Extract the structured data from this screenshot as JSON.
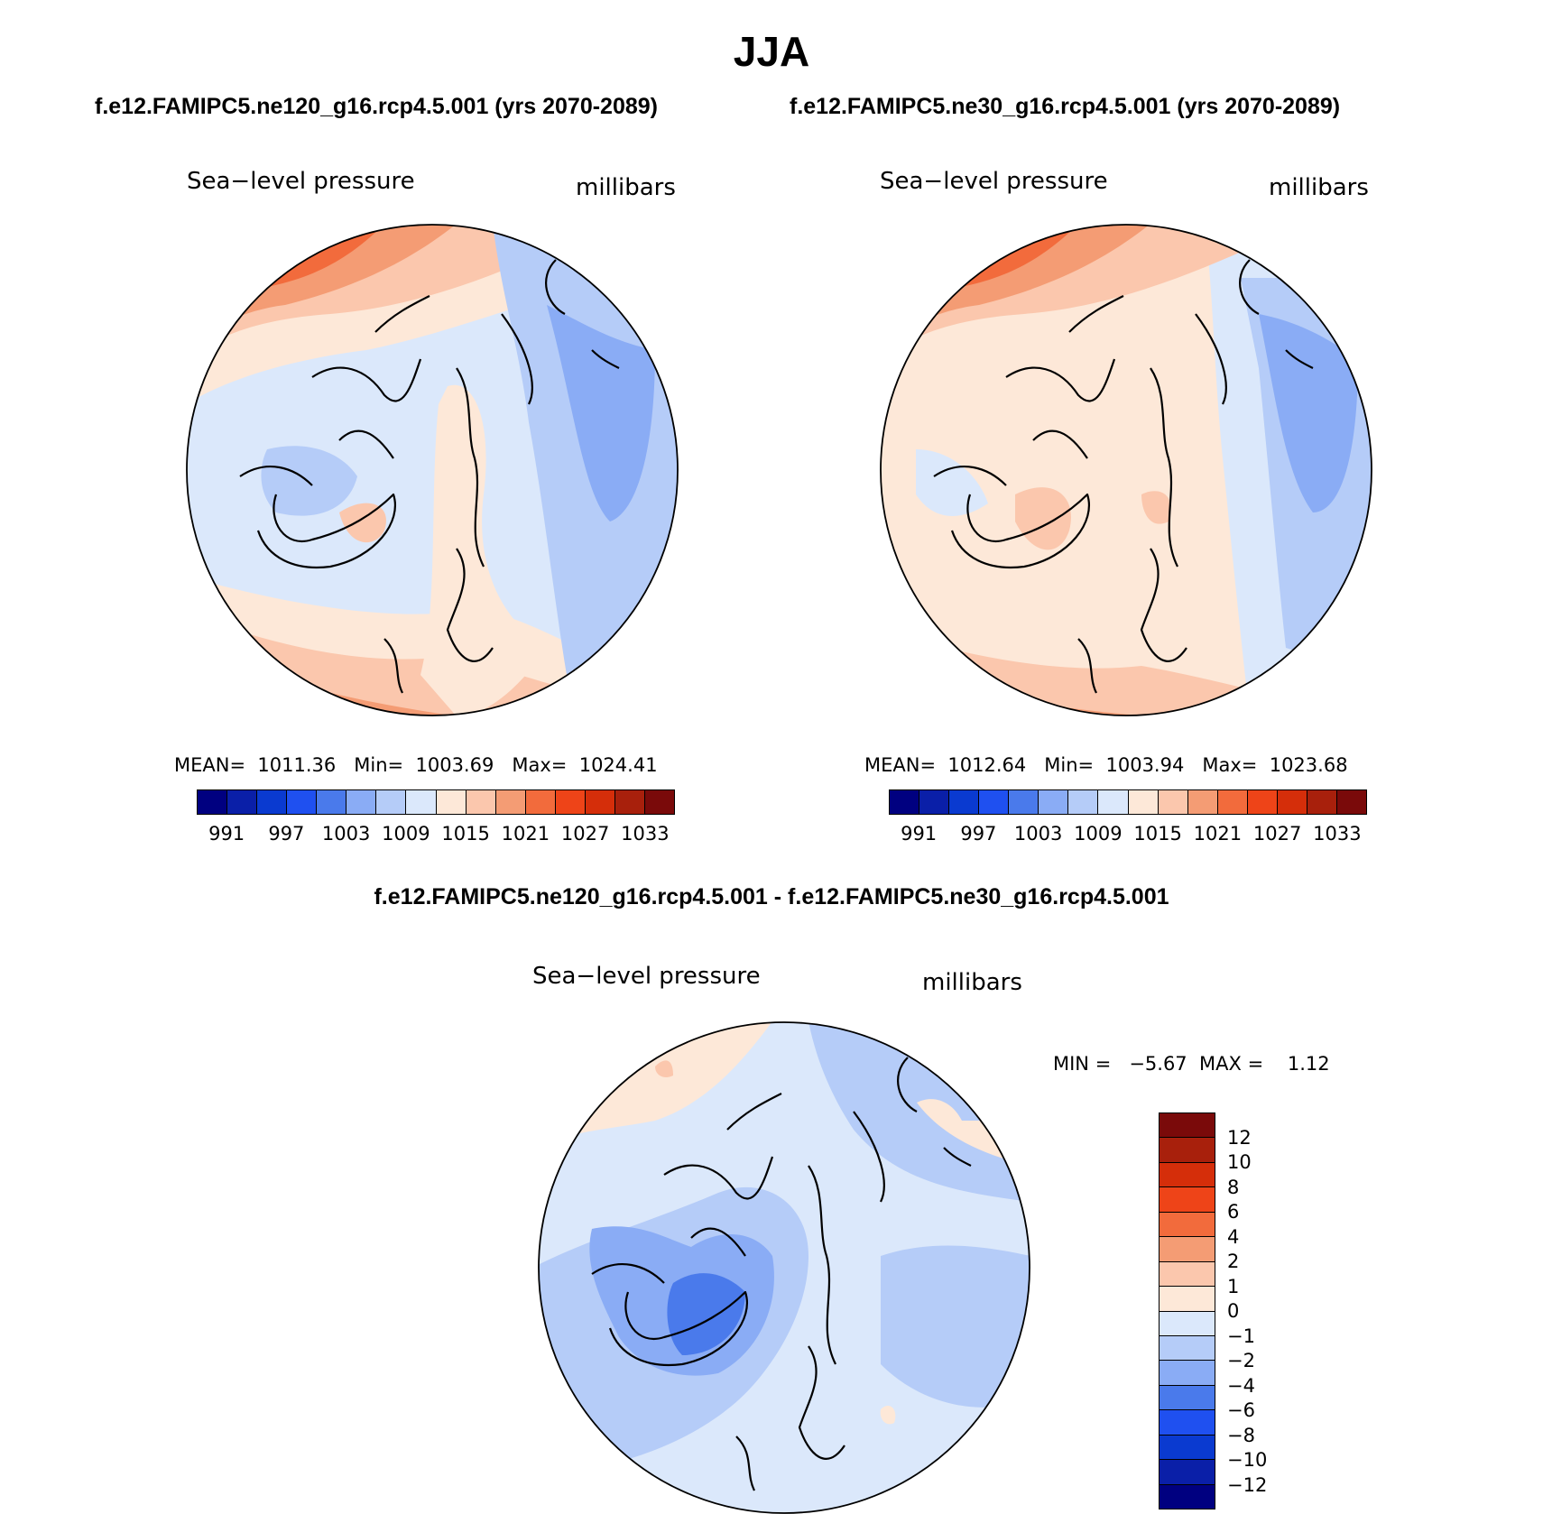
{
  "title": "JJA",
  "panels": [
    {
      "case": "f.e12.FAMIPC5.ne120_g16.rcp4.5.001 (yrs 2070-2089)",
      "variable": "Sea−level pressure",
      "units": "millibars",
      "stats": "MEAN=  1011.36   Min=  1003.69   Max=  1024.41",
      "mean": 1011.36,
      "min": 1003.69,
      "max": 1024.41
    },
    {
      "case": "f.e12.FAMIPC5.ne30_g16.rcp4.5.001 (yrs 2070-2089)",
      "variable": "Sea−level pressure",
      "units": "millibars",
      "stats": "MEAN=  1012.64   Min=  1003.94   Max=  1023.68",
      "mean": 1012.64,
      "min": 1003.94,
      "max": 1023.68
    }
  ],
  "diff": {
    "title": "f.e12.FAMIPC5.ne120_g16.rcp4.5.001 - f.e12.FAMIPC5.ne30_g16.rcp4.5.001",
    "variable": "Sea−level pressure",
    "units": "millibars",
    "stats": "MIN =   −5.67  MAX =    1.12",
    "min": -5.67,
    "max": 1.12
  },
  "colorbar_abs": {
    "colors": [
      "#000080",
      "#0a1fa8",
      "#0a3ad0",
      "#1f50f0",
      "#4a7aeb",
      "#8aacf5",
      "#b5ccf8",
      "#dbe8fb",
      "#fde8d8",
      "#fbc7ad",
      "#f49c74",
      "#f26b3c",
      "#ee4418",
      "#d52e0a",
      "#a8200c",
      "#7a0a0a"
    ],
    "labels": [
      "991",
      "997",
      "1003",
      "1009",
      "1015",
      "1021",
      "1027",
      "1033"
    ]
  },
  "colorbar_diff": {
    "colors": [
      "#000080",
      "#0a1fa8",
      "#0a3ad0",
      "#1f50f0",
      "#4a7aeb",
      "#8aacf5",
      "#b5ccf8",
      "#dbe8fb",
      "#fde8d8",
      "#fbc7ad",
      "#f49c74",
      "#f26b3c",
      "#ee4418",
      "#d52e0a",
      "#a8200c",
      "#7a0a0a"
    ],
    "labels": [
      "−12",
      "−10",
      "−8",
      "−6",
      "−4",
      "−2",
      "−1",
      "0",
      "1",
      "2",
      "4",
      "6",
      "8",
      "10",
      "12"
    ]
  }
}
